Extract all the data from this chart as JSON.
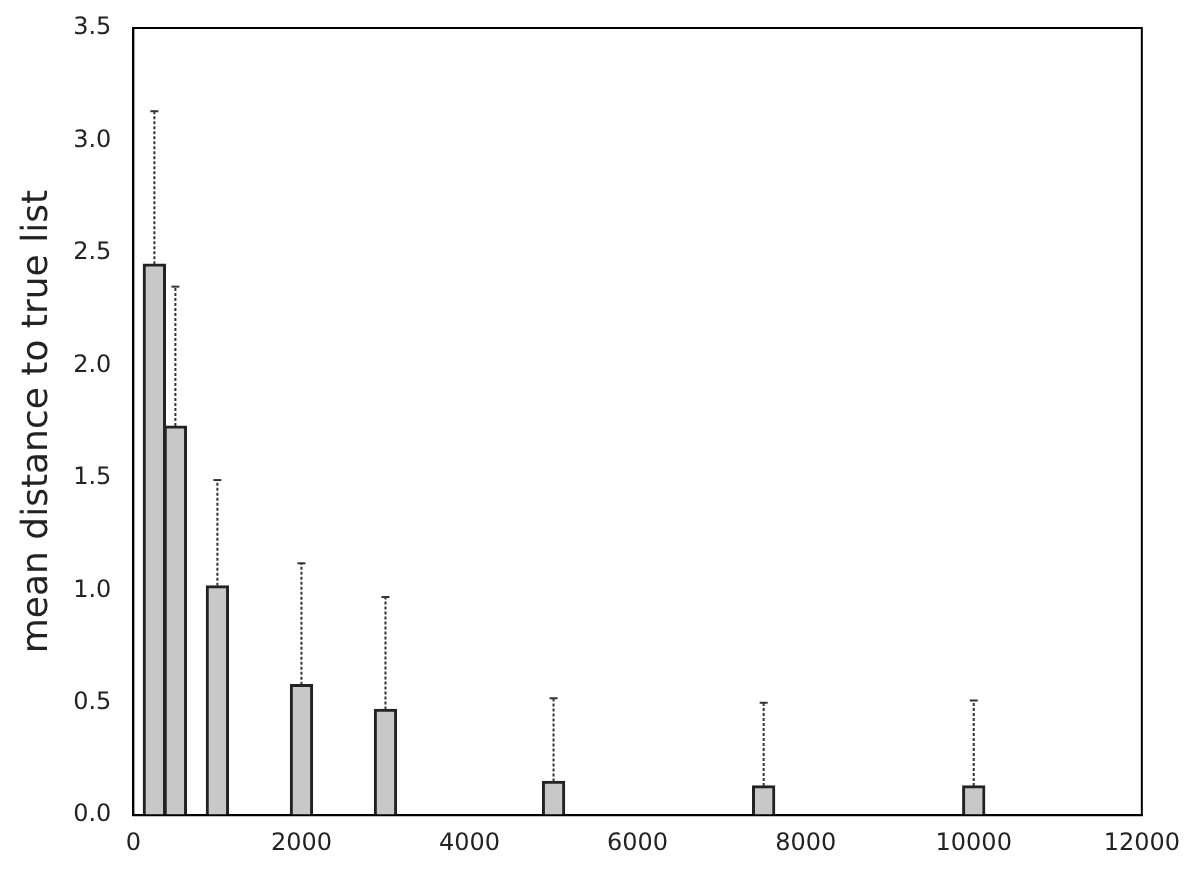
{
  "chart_data": {
    "type": "bar",
    "ylabel": "mean distance to true list",
    "x": [
      250,
      500,
      1000,
      2000,
      3000,
      5000,
      7500,
      10000
    ],
    "values": [
      2.45,
      1.73,
      1.02,
      0.58,
      0.47,
      0.15,
      0.13,
      0.13
    ],
    "errors": [
      [
        2.45,
        3.13
      ],
      [
        1.73,
        2.35
      ],
      [
        1.02,
        1.49
      ],
      [
        0.58,
        1.12
      ],
      [
        0.47,
        0.97
      ],
      [
        0.15,
        0.52
      ],
      [
        0.13,
        0.5
      ],
      [
        0.13,
        0.51
      ]
    ],
    "color": "#c8c8c8",
    "xlim": [
      0,
      12000
    ],
    "xticks": [
      0,
      2000,
      4000,
      6000,
      8000,
      10000,
      12000
    ],
    "ylim": [
      0,
      3.5
    ],
    "yticks": [
      {
        "value": 0,
        "label": "0.0"
      },
      0.5,
      {
        "value": 1,
        "label": "1.0"
      },
      1.5,
      {
        "value": 2,
        "label": "2.0"
      },
      2.5,
      {
        "value": 3,
        "label": "3.0"
      },
      3.5
    ],
    "grid": false,
    "legend": false
  }
}
